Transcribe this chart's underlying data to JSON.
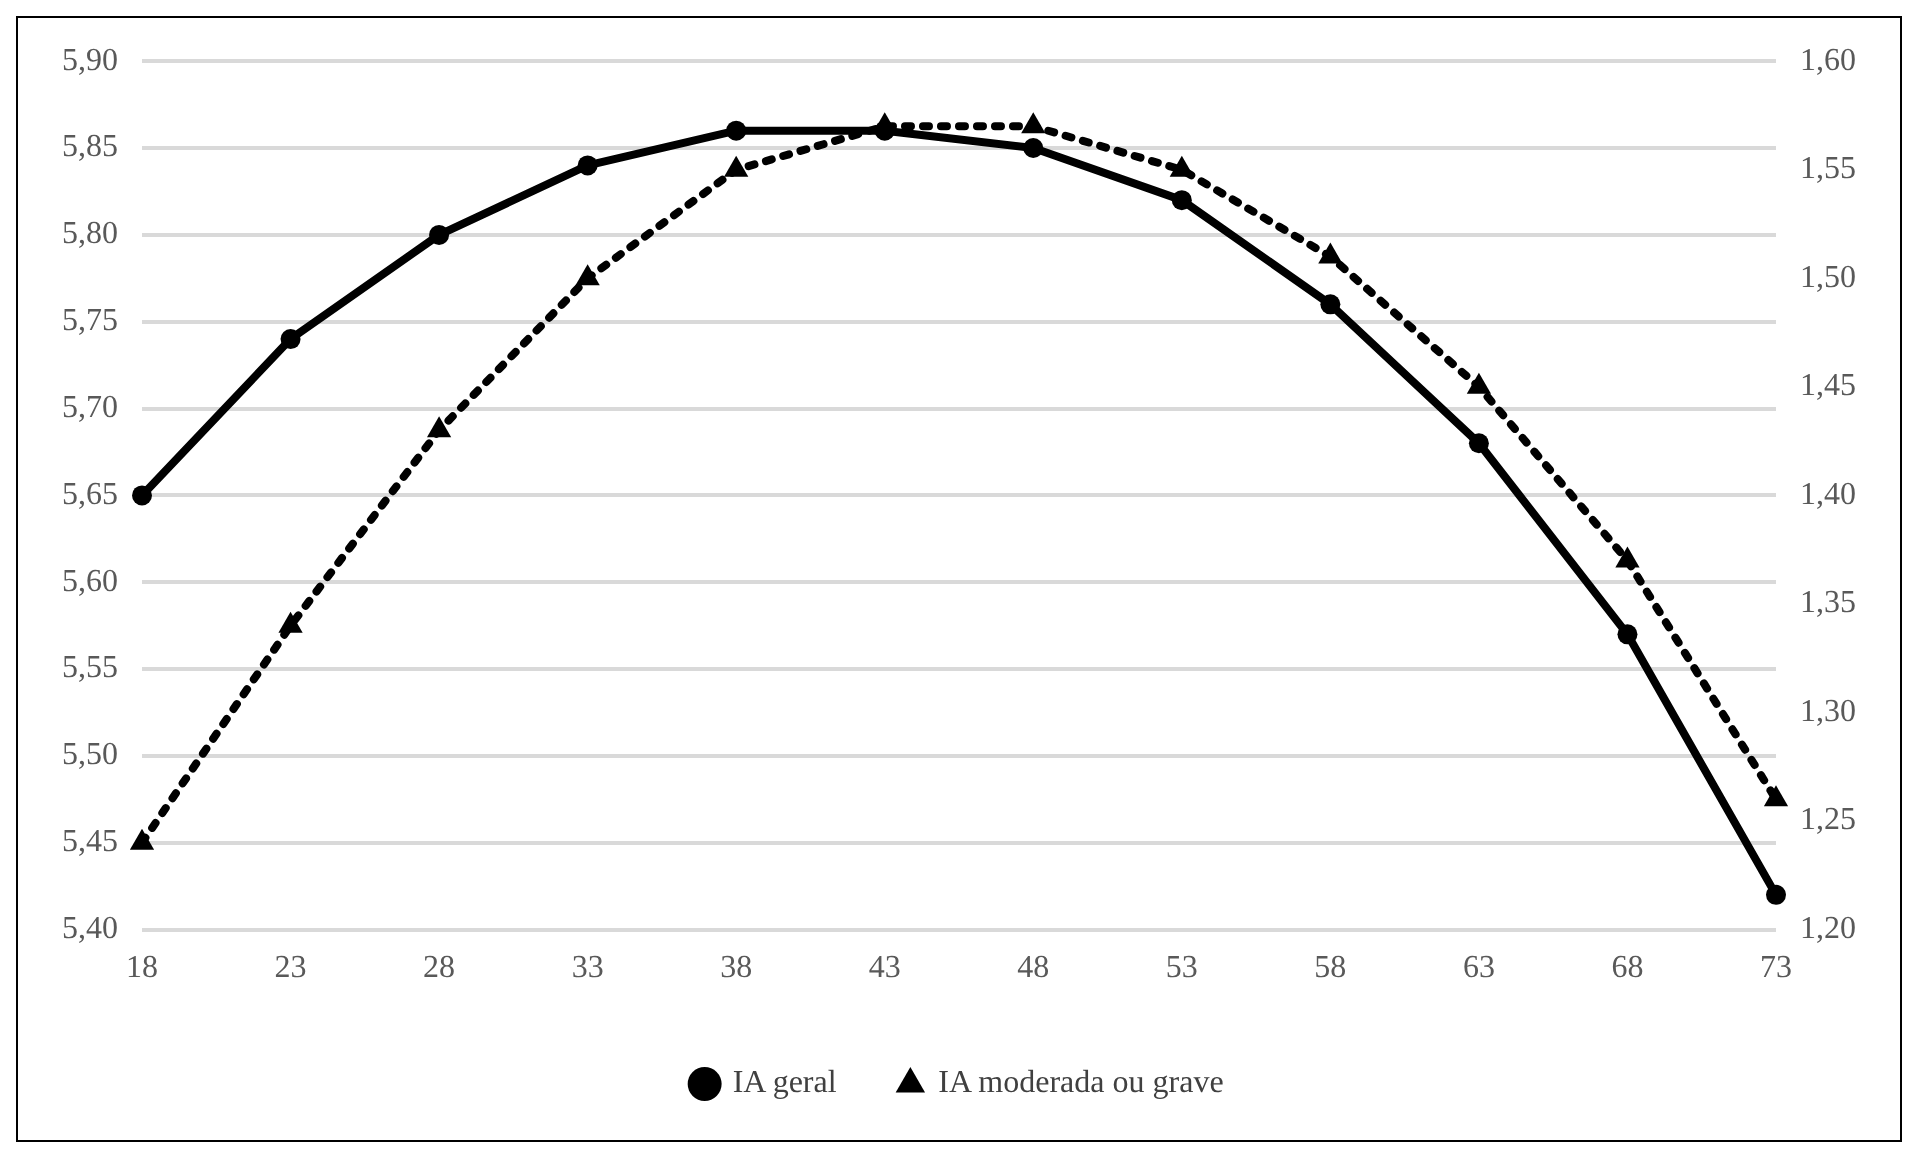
{
  "chart_data": {
    "type": "line",
    "categories": [
      "18",
      "23",
      "28",
      "33",
      "38",
      "43",
      "48",
      "53",
      "58",
      "63",
      "68",
      "73"
    ],
    "series": [
      {
        "name": "IA geral",
        "color": "#000000",
        "marker": "circle",
        "line_style": "solid",
        "values": [
          5.65,
          5.74,
          5.8,
          5.84,
          5.86,
          5.86,
          5.85,
          5.82,
          5.76,
          5.68,
          5.57,
          5.42
        ]
      },
      {
        "name": "IA moderada ou grave",
        "color": "#000000",
        "marker": "triangle",
        "line_style": "dotted",
        "axis": "y2",
        "values": [
          1.24,
          1.34,
          1.43,
          1.5,
          1.55,
          1.57,
          1.57,
          1.55,
          1.51,
          1.45,
          1.37,
          1.26
        ]
      }
    ],
    "ylim": [
      5.4,
      5.9
    ],
    "yticks": [
      {
        "value": 5.4,
        "label": "5,40"
      },
      {
        "value": 5.45,
        "label": "5,45"
      },
      {
        "value": 5.5,
        "label": "5,50"
      },
      {
        "value": 5.55,
        "label": "5,55"
      },
      {
        "value": 5.6,
        "label": "5,60"
      },
      {
        "value": 5.65,
        "label": "5,65"
      },
      {
        "value": 5.7,
        "label": "5,70"
      },
      {
        "value": 5.75,
        "label": "5,75"
      },
      {
        "value": 5.8,
        "label": "5,80"
      },
      {
        "value": 5.85,
        "label": "5,85"
      },
      {
        "value": 5.9,
        "label": "5,90"
      }
    ],
    "y2lim": [
      1.2,
      1.6
    ],
    "y2ticks": [
      {
        "value": 1.2,
        "label": "1,20"
      },
      {
        "value": 1.25,
        "label": "1,25"
      },
      {
        "value": 1.3,
        "label": "1,30"
      },
      {
        "value": 1.35,
        "label": "1,35"
      },
      {
        "value": 1.4,
        "label": "1,40"
      },
      {
        "value": 1.45,
        "label": "1,45"
      },
      {
        "value": 1.5,
        "label": "1,50"
      },
      {
        "value": 1.55,
        "label": "1,55"
      },
      {
        "value": 1.6,
        "label": "1,60"
      }
    ],
    "grid": "y",
    "legend": "bottom"
  }
}
